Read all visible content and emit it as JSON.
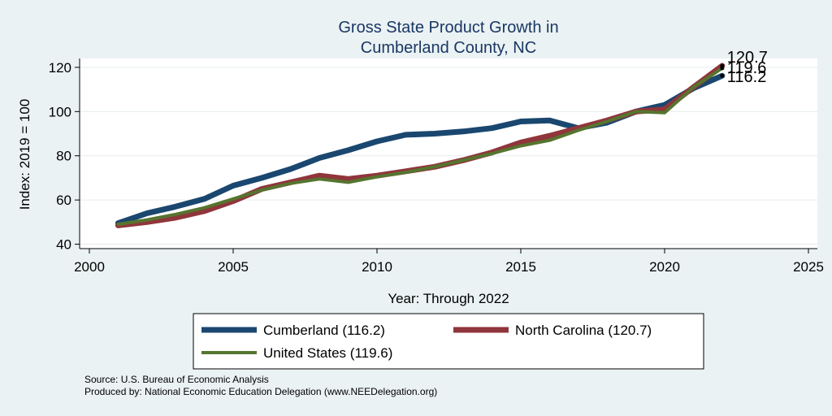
{
  "chart_data": {
    "type": "line",
    "title": [
      "Gross State Product Growth in",
      "Cumberland County, NC"
    ],
    "xlabel": "Year: Through 2022",
    "ylabel": "Index: 2019 = 100",
    "xlim": [
      2000,
      2025
    ],
    "ylim": [
      38,
      124
    ],
    "xticks": [
      2000,
      2005,
      2010,
      2015,
      2020,
      2025
    ],
    "yticks": [
      40,
      60,
      80,
      100,
      120
    ],
    "grid": true,
    "x": [
      2001,
      2002,
      2003,
      2004,
      2005,
      2006,
      2007,
      2008,
      2009,
      2010,
      2011,
      2012,
      2013,
      2014,
      2015,
      2016,
      2017,
      2018,
      2019,
      2020,
      2021,
      2022
    ],
    "series": [
      {
        "name": "Cumberland",
        "legend": "Cumberland  (116.2)",
        "color": "#1a476f",
        "end_label": "116.2",
        "values": [
          49.5,
          54,
          57,
          60.5,
          66.5,
          70,
          74,
          79,
          82.5,
          86.5,
          89.5,
          90,
          91,
          92.5,
          95.5,
          96,
          92.5,
          95,
          100,
          103,
          110.5,
          116.2
        ]
      },
      {
        "name": "North Carolina",
        "legend": "North Carolina (120.7)",
        "color": "#90353b",
        "end_label": "120.7",
        "values": [
          48.5,
          50,
          52,
          55,
          59.5,
          65,
          68,
          71,
          69.5,
          71,
          73,
          75,
          78,
          81.5,
          86,
          89,
          92.5,
          96,
          100,
          101,
          111,
          120.7
        ]
      },
      {
        "name": "United States",
        "legend": "United States (119.6)",
        "color": "#55752f",
        "end_label": "119.6",
        "values": [
          49,
          51,
          53.5,
          56.5,
          60.5,
          64.5,
          67.5,
          69.5,
          68,
          70.5,
          72.5,
          75,
          78,
          81,
          84.5,
          87,
          91.5,
          95.5,
          100,
          99.5,
          111,
          119.6
        ]
      }
    ]
  },
  "notes": {
    "source": "Source: U.S. Bureau of Economic Analysis",
    "produced_by": "Produced by: National Economic Education Delegation (www.NEEDelegation.org)"
  }
}
